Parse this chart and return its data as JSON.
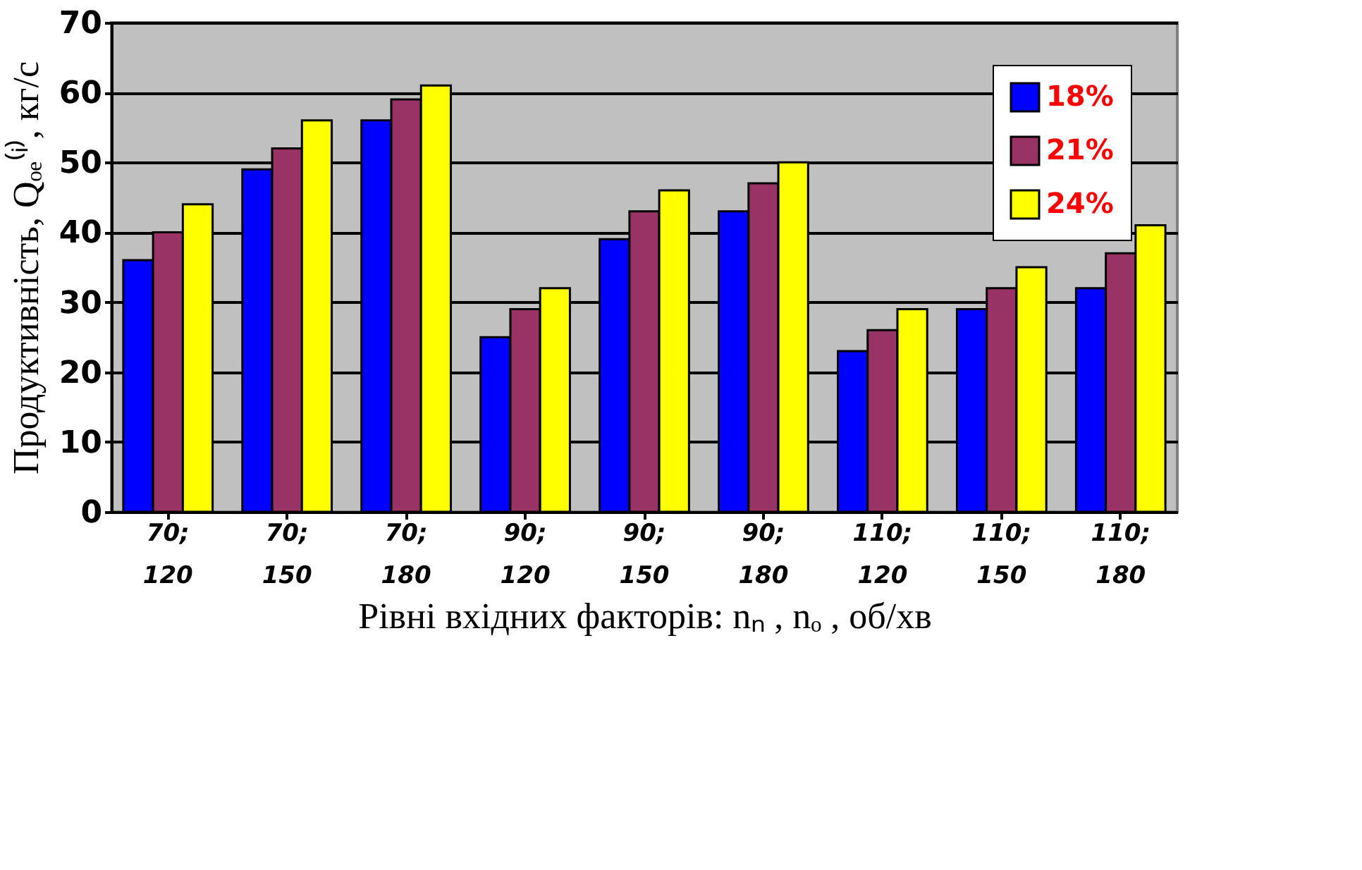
{
  "chart_data": {
    "type": "bar",
    "xlabel": "Рівні вхідних факторів: nₙ , nₒ , об/хв",
    "ylabel": "Продуктивність, Qₒₑ⁽ⁱ⁾, кг/с",
    "categories": [
      "70; 120",
      "70; 150",
      "70; 180",
      "90; 120",
      "90; 150",
      "90; 180",
      "110; 120",
      "110; 150",
      "110; 180"
    ],
    "series": [
      {
        "name": "18%",
        "color": "#0000ff",
        "values": [
          36,
          49,
          56,
          25,
          39,
          43,
          23,
          29,
          32
        ]
      },
      {
        "name": "21%",
        "color": "#993366",
        "values": [
          40,
          52,
          59,
          29,
          43,
          47,
          26,
          32,
          37
        ]
      },
      {
        "name": "24%",
        "color": "#ffff00",
        "values": [
          44,
          56,
          61,
          32,
          46,
          50,
          29,
          35,
          41
        ]
      }
    ],
    "ylim": [
      0,
      70
    ],
    "yticks": [
      0,
      10,
      20,
      30,
      40,
      50,
      60,
      70
    ],
    "grid": "y",
    "legend": "top right"
  }
}
